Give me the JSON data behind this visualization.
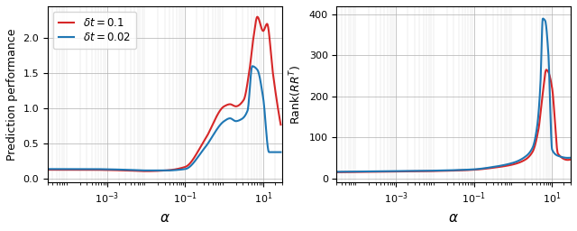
{
  "left_ylabel": "Prediction performance",
  "right_ylabel": "Rank($RR^T$)",
  "xlabel": "$\\alpha$",
  "xlim": [
    3e-05,
    30
  ],
  "ylim_left": [
    -0.05,
    2.45
  ],
  "ylim_right": [
    -10,
    420
  ],
  "yticks_left": [
    0.0,
    0.5,
    1.0,
    1.5,
    2.0
  ],
  "yticks_right": [
    0,
    100,
    200,
    300,
    400
  ],
  "legend_labels": [
    "$\\delta t = 0.1$",
    "$\\delta t = 0.02$"
  ],
  "color_red": "#d62728",
  "color_blue": "#1f77b4",
  "grid_color": "#b0b0b0",
  "line_width": 1.5,
  "figsize": [
    6.4,
    2.56
  ],
  "dpi": 100,
  "xticks_major": [
    0.001,
    0.1,
    10.0
  ],
  "xtick_labels": [
    "$10^{-3}$",
    "$10^{-1}$",
    "$10^{1}$"
  ]
}
